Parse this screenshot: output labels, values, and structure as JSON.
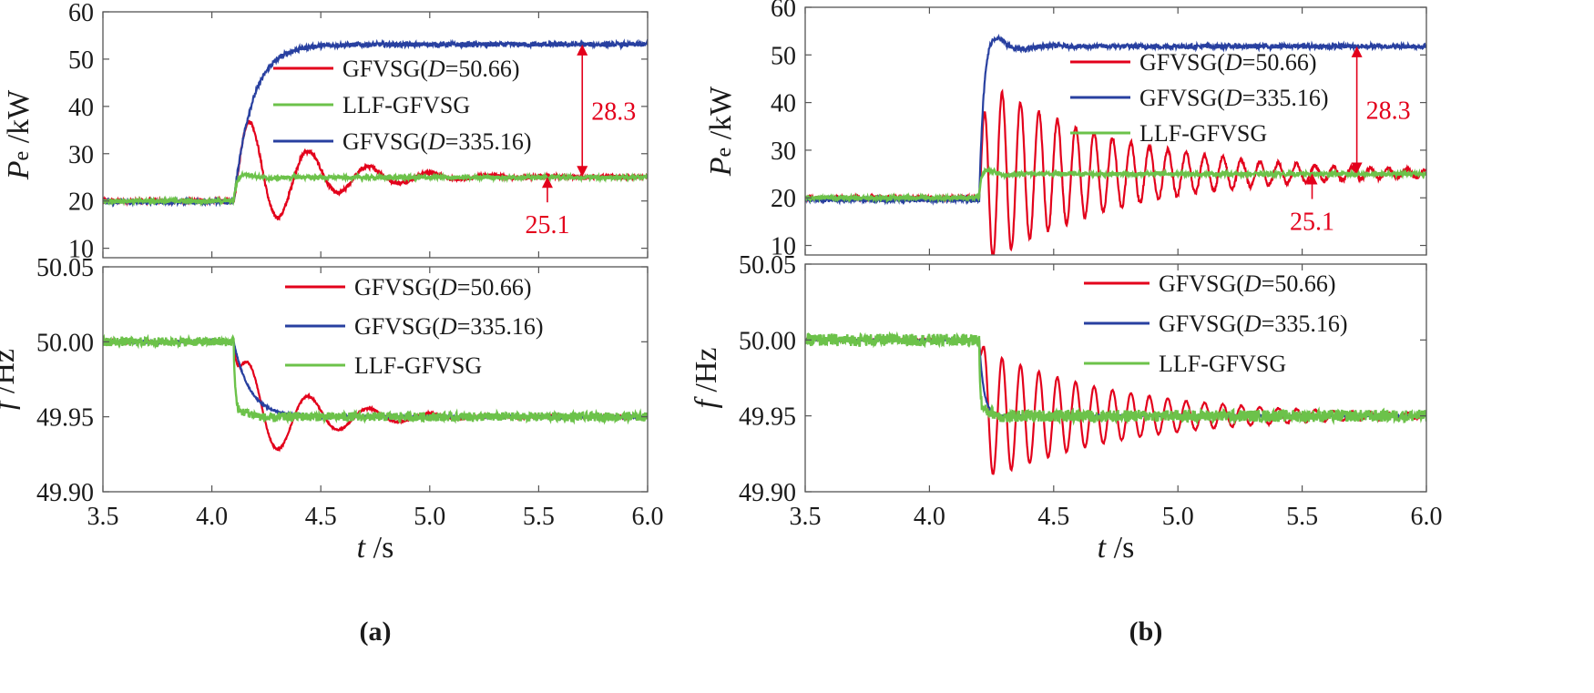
{
  "colors": {
    "red": "#e3001b",
    "blue": "#2840a0",
    "green": "#6cc24a"
  },
  "chart_data": [
    {
      "panel": "(a)",
      "type": "line",
      "ylabel": "Pe /kW",
      "ylabel_main": "P",
      "ylabel_sub": "e",
      "ylabel_unit": " /kW",
      "xlim": [
        3.5,
        6.0
      ],
      "ylim": [
        8,
        60
      ],
      "yticks": [
        "10",
        "20",
        "30",
        "40",
        "50",
        "60"
      ],
      "xticks": [],
      "legend": [
        {
          "key": "red",
          "pre": "GFVSG(",
          "italic": "D",
          "post": "=50.66)"
        },
        {
          "key": "green",
          "pre": "LLF-GFVSG",
          "italic": "",
          "post": ""
        },
        {
          "key": "blue",
          "pre": "GFVSG(",
          "italic": "D",
          "post": "=335.16)"
        }
      ],
      "series": [
        {
          "name": "GFVSG(D=50.66)",
          "key": "red",
          "pre": 20,
          "t0": 4.1,
          "final": 25.1,
          "amp": 17,
          "freq": 3.6,
          "tau": 0.3,
          "tr": 0.03,
          "noise": 0.4
        },
        {
          "name": "GFVSG(D=335.16)",
          "key": "blue",
          "pre": 19.8,
          "t0": 4.1,
          "final": 53.1,
          "amp": 0,
          "freq": 0,
          "tau": 1,
          "tr": 0.085,
          "noise": 0.5
        },
        {
          "name": "LLF-GFVSG",
          "key": "green",
          "pre": 20,
          "t0": 4.1,
          "final": 25,
          "amp": 1.2,
          "freq": 4,
          "tau": 0.1,
          "tr": 0.012,
          "noise": 0.4
        }
      ],
      "annotations": [
        {
          "label": "28.3",
          "value": 28.3
        },
        {
          "label": "25.1",
          "value": 25.1
        }
      ]
    },
    {
      "panel": "(a)",
      "type": "line",
      "ylabel": "f /Hz",
      "ylabel_main": "f",
      "ylabel_sub": "",
      "ylabel_unit": " /Hz",
      "xlabel": "t /s",
      "xlabel_main": "t",
      "xlabel_unit": " /s",
      "xlim": [
        3.5,
        6.0
      ],
      "ylim": [
        49.9,
        50.05
      ],
      "yticks": [
        "49.90",
        "49.95",
        "50.00",
        "50.05"
      ],
      "xticks": [
        "3.5",
        "4.0",
        "4.5",
        "5.0",
        "5.5",
        "6.0"
      ],
      "legend": [
        {
          "key": "red",
          "pre": "GFVSG(",
          "italic": "D",
          "post": "=50.66)"
        },
        {
          "key": "blue",
          "pre": "GFVSG(",
          "italic": "D",
          "post": "=335.16)"
        },
        {
          "key": "green",
          "pre": "LLF-GFVSG",
          "italic": "",
          "post": ""
        }
      ],
      "series": [
        {
          "name": "GFVSG(D=50.66)",
          "key": "red",
          "pre": 50.0,
          "t0": 4.1,
          "final": 49.95,
          "amp": 0.043,
          "freq": 3.6,
          "tau": 0.3,
          "tr": 0.03,
          "noise": 0.0005
        },
        {
          "name": "GFVSG(D=335.16)",
          "key": "blue",
          "pre": 50.0,
          "t0": 4.1,
          "final": 49.95,
          "amp": 0,
          "freq": 0,
          "tau": 1,
          "tr": 0.075,
          "noise": 0.0005
        },
        {
          "name": "LLF-GFVSG",
          "key": "green",
          "pre": 50.0,
          "t0": 4.1,
          "final": 49.95,
          "amp": 0.005,
          "freq": 4,
          "tau": 0.1,
          "tr": 0.008,
          "noise": 0.003
        }
      ],
      "annotations": []
    },
    {
      "panel": "(b)",
      "type": "line",
      "ylabel": "Pe /kW",
      "ylabel_main": "P",
      "ylabel_sub": "e",
      "ylabel_unit": " /kW",
      "xlim": [
        3.5,
        6.0
      ],
      "ylim": [
        8,
        60
      ],
      "yticks": [
        "10",
        "20",
        "30",
        "40",
        "50",
        "60"
      ],
      "xticks": [],
      "legend": [
        {
          "key": "red",
          "pre": "GFVSG(",
          "italic": "D",
          "post": "=50.66)"
        },
        {
          "key": "blue",
          "pre": "GFVSG(",
          "italic": "D",
          "post": "=335.16)"
        },
        {
          "key": "green",
          "pre": "LLF-GFVSG",
          "italic": "",
          "post": ""
        }
      ],
      "series": [
        {
          "name": "GFVSG(D=50.66)",
          "key": "red",
          "pre": 20,
          "t0": 4.2,
          "final": 25.1,
          "amp": 20,
          "freq": 13.5,
          "tau": 0.55,
          "tr": 0.015,
          "noise": 0.4
        },
        {
          "name": "GFVSG(D=335.16)",
          "key": "blue",
          "pre": 19.6,
          "t0": 4.2,
          "final": 51.8,
          "amp": 6,
          "freq": 4,
          "tau": 0.08,
          "tr": 0.018,
          "noise": 0.5
        },
        {
          "name": "LLF-GFVSG",
          "key": "green",
          "pre": 20,
          "t0": 4.2,
          "final": 25,
          "amp": 1.2,
          "freq": 6,
          "tau": 0.08,
          "tr": 0.006,
          "noise": 0.4
        }
      ],
      "annotations": [
        {
          "label": "28.3",
          "value": 28.3
        },
        {
          "label": "25.1",
          "value": 25.1
        }
      ]
    },
    {
      "panel": "(b)",
      "type": "line",
      "ylabel": "f /Hz",
      "ylabel_main": "f",
      "ylabel_sub": "",
      "ylabel_unit": " /Hz",
      "xlabel": "t /s",
      "xlabel_main": "t",
      "xlabel_unit": " /s",
      "xlim": [
        3.5,
        6.0
      ],
      "ylim": [
        49.9,
        50.05
      ],
      "yticks": [
        "49.90",
        "49.95",
        "50.00",
        "50.05"
      ],
      "xticks": [
        "3.5",
        "4.0",
        "4.5",
        "5.0",
        "5.5",
        "6.0"
      ],
      "legend": [
        {
          "key": "red",
          "pre": "GFVSG(",
          "italic": "D",
          "post": "=50.66)"
        },
        {
          "key": "blue",
          "pre": "GFVSG(",
          "italic": "D",
          "post": "=335.16)"
        },
        {
          "key": "green",
          "pre": "LLF-GFVSG",
          "italic": "",
          "post": ""
        }
      ],
      "series": [
        {
          "name": "GFVSG(D=50.66)",
          "key": "red",
          "pre": 50.0,
          "t0": 4.2,
          "final": 49.95,
          "amp": 0.045,
          "freq": 13.5,
          "tau": 0.55,
          "tr": 0.015,
          "noise": 0.0004
        },
        {
          "name": "GFVSG(D=335.16)",
          "key": "blue",
          "pre": 50.0,
          "t0": 4.2,
          "final": 49.95,
          "amp": 0,
          "freq": 0,
          "tau": 1,
          "tr": 0.018,
          "noise": 0.0004
        },
        {
          "name": "LLF-GFVSG",
          "key": "green",
          "pre": 50.0,
          "t0": 4.2,
          "final": 49.95,
          "amp": 0.006,
          "freq": 6,
          "tau": 0.06,
          "tr": 0.005,
          "noise": 0.004
        }
      ],
      "annotations": []
    }
  ],
  "captions": [
    "(a)",
    "(b)"
  ]
}
